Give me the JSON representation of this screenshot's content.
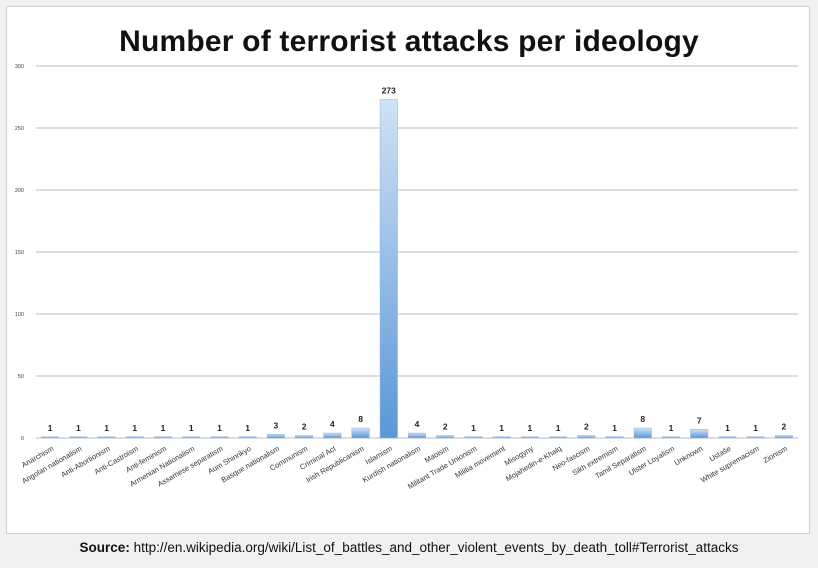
{
  "chart_data": {
    "type": "bar",
    "title": "Number of terrorist attacks per ideology",
    "xlabel": "",
    "ylabel": "",
    "ylim": [
      0,
      300
    ],
    "yticks": [
      0,
      50,
      100,
      150,
      200,
      250,
      300
    ],
    "grid": true,
    "categories": [
      "Anarchism",
      "Angolan nationalism",
      "Anti-Abortionism",
      "Anti-Castroism",
      "Anti-feminism",
      "Armenian Nationalism",
      "Assamese separatism",
      "Aum Shinrikyo",
      "Basque nationalism",
      "Communism",
      "Criminal Act",
      "Irish Republicanism",
      "Islamism",
      "Kurdish nationalism",
      "Maoism",
      "Militant Trade Unionism",
      "Militia movement",
      "Misogyny",
      "Mojahedin-e-Khalq",
      "Neo-fascism",
      "Sikh extremism",
      "Tamil Separatism",
      "Ulster Loyalism",
      "Unknown",
      "Ustaše",
      "White supremacism",
      "Zionism"
    ],
    "values": [
      1,
      1,
      1,
      1,
      1,
      1,
      1,
      1,
      3,
      2,
      4,
      8,
      273,
      4,
      2,
      1,
      1,
      1,
      1,
      2,
      1,
      8,
      1,
      7,
      1,
      1,
      2
    ],
    "colors": {
      "bar_light": "#cfe2f6",
      "bar_dark": "#5b97d6",
      "grid": "#bdbdbd",
      "text": "#222222"
    }
  },
  "source": {
    "label": "Source:",
    "url": "http://en.wikipedia.org/wiki/List_of_battles_and_other_violent_events_by_death_toll#Terrorist_attacks"
  }
}
